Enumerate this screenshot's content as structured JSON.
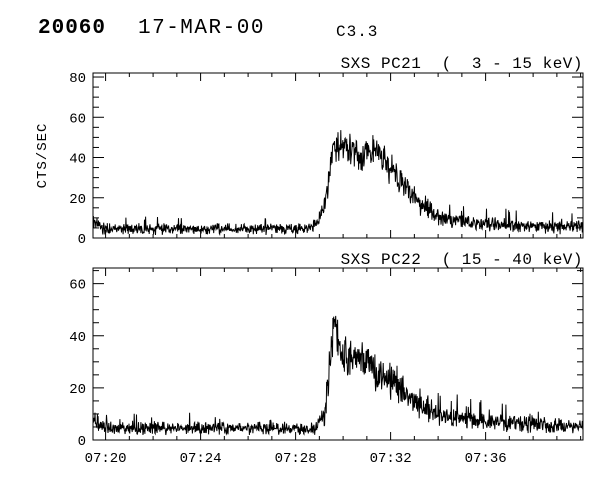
{
  "header": {
    "event_id": "20060",
    "date": "17-MAR-00",
    "goes_class": "C3.3"
  },
  "x_axis": {
    "tick_labels": [
      "07:20",
      "07:24",
      "07:28",
      "07:32",
      "07:36"
    ],
    "tick_minutes": [
      20,
      24,
      28,
      32,
      36
    ],
    "minor_step_min": 1,
    "range_minutes": [
      19.47,
      40.1
    ]
  },
  "chart_data": [
    {
      "type": "line",
      "title": "SXS PC21  (  3 - 15 keV)",
      "ylabel": "CTS/SEC",
      "ylim": [
        0,
        82
      ],
      "yticks": [
        0,
        20,
        40,
        60,
        80
      ],
      "y_minor_step": 5,
      "x_tick_labels_visible": false,
      "sample_sec": 1,
      "seed": 20211,
      "envelope": [
        [
          19.55,
          8,
          3
        ],
        [
          19.9,
          4.5,
          2
        ],
        [
          24.0,
          4.5,
          2
        ],
        [
          28.65,
          4.5,
          2
        ],
        [
          29.05,
          10,
          3
        ],
        [
          29.35,
          24,
          5
        ],
        [
          29.55,
          43,
          6
        ],
        [
          30.05,
          47,
          6.5
        ],
        [
          30.7,
          40,
          6
        ],
        [
          31.45,
          45,
          6
        ],
        [
          31.95,
          35,
          6
        ],
        [
          32.6,
          26,
          5
        ],
        [
          33.2,
          17,
          4
        ],
        [
          34.2,
          10,
          3
        ],
        [
          35.6,
          7,
          2.5
        ],
        [
          37.5,
          6,
          2.5
        ],
        [
          40.1,
          5.5,
          2.5
        ]
      ]
    },
    {
      "type": "line",
      "title": "SXS PC22  ( 15 - 40 keV)",
      "ylabel": "",
      "ylim": [
        0,
        66
      ],
      "yticks": [
        0,
        20,
        40,
        60
      ],
      "y_minor_step": 5,
      "x_tick_labels_visible": true,
      "sample_sec": 1,
      "seed": 40222,
      "envelope": [
        [
          19.55,
          7,
          2.5
        ],
        [
          19.9,
          4.5,
          1.8
        ],
        [
          28.8,
          4.5,
          1.8
        ],
        [
          29.2,
          9,
          3
        ],
        [
          29.45,
          28,
          6
        ],
        [
          29.62,
          46,
          5
        ],
        [
          29.85,
          34,
          6
        ],
        [
          30.35,
          31,
          6
        ],
        [
          30.85,
          32,
          6
        ],
        [
          31.55,
          25,
          5
        ],
        [
          32.35,
          21,
          5
        ],
        [
          33.05,
          14,
          4
        ],
        [
          34.05,
          9.5,
          3
        ],
        [
          35.6,
          7,
          2.5
        ],
        [
          40.1,
          5,
          2
        ]
      ]
    }
  ]
}
